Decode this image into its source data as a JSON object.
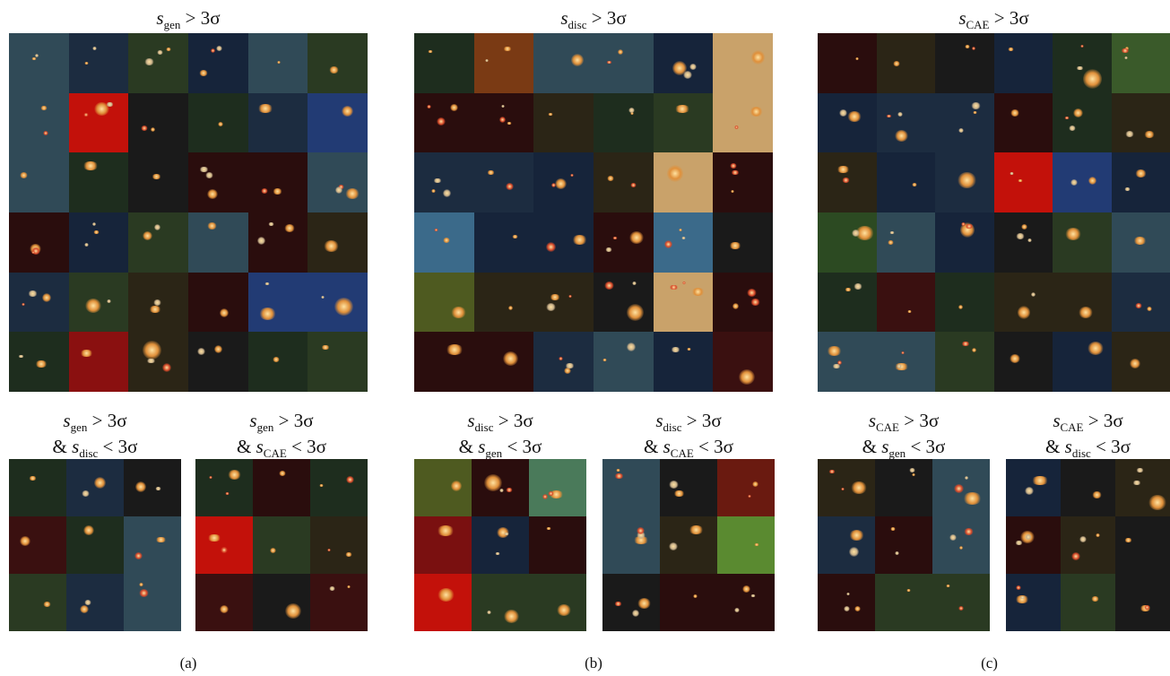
{
  "panels": [
    {
      "label": "(a)",
      "main_title": {
        "var": "s",
        "sub": "gen",
        "rel": "> 3σ"
      },
      "sub_titles": [
        {
          "line1_sub": "gen",
          "line1_rel": "> 3σ",
          "line2_amp": "&",
          "line2_sub": "disc",
          "line2_rel": "< 3σ"
        },
        {
          "line1_sub": "gen",
          "line1_rel": "> 3σ",
          "line2_amp": "&",
          "line2_sub": "CAE",
          "line2_rel": "< 3σ"
        }
      ]
    },
    {
      "label": "(b)",
      "main_title": {
        "var": "s",
        "sub": "disc",
        "rel": "> 3σ"
      },
      "sub_titles": [
        {
          "line1_sub": "disc",
          "line1_rel": "> 3σ",
          "line2_amp": "&",
          "line2_sub": "gen",
          "line2_rel": "< 3σ"
        },
        {
          "line1_sub": "disc",
          "line1_rel": "> 3σ",
          "line2_amp": "&",
          "line2_sub": "CAE",
          "line2_rel": "< 3σ"
        }
      ]
    },
    {
      "label": "(c)",
      "main_title": {
        "var": "s",
        "sub": "CAE",
        "rel": "> 3σ"
      },
      "sub_titles": [
        {
          "line1_sub": "CAE",
          "line1_rel": "> 3σ",
          "line2_amp": "&",
          "line2_sub": "gen",
          "line2_rel": "< 3σ"
        },
        {
          "line1_sub": "CAE",
          "line1_rel": "> 3σ",
          "line2_amp": "&",
          "line2_sub": "disc",
          "line2_rel": "< 3σ"
        }
      ]
    }
  ],
  "colors": {
    "dark_red": "#2a0d0d",
    "dark_blue": "#16243a",
    "dark_green": "#1e2d1e",
    "dark_brown": "#2b2516",
    "bright_red": "#c3110a",
    "blue_band": "#223b74",
    "teal": "#304a57",
    "olive": "#4e5a20",
    "tan": "#c9a26a",
    "galaxy_orange": "#e0903a"
  }
}
